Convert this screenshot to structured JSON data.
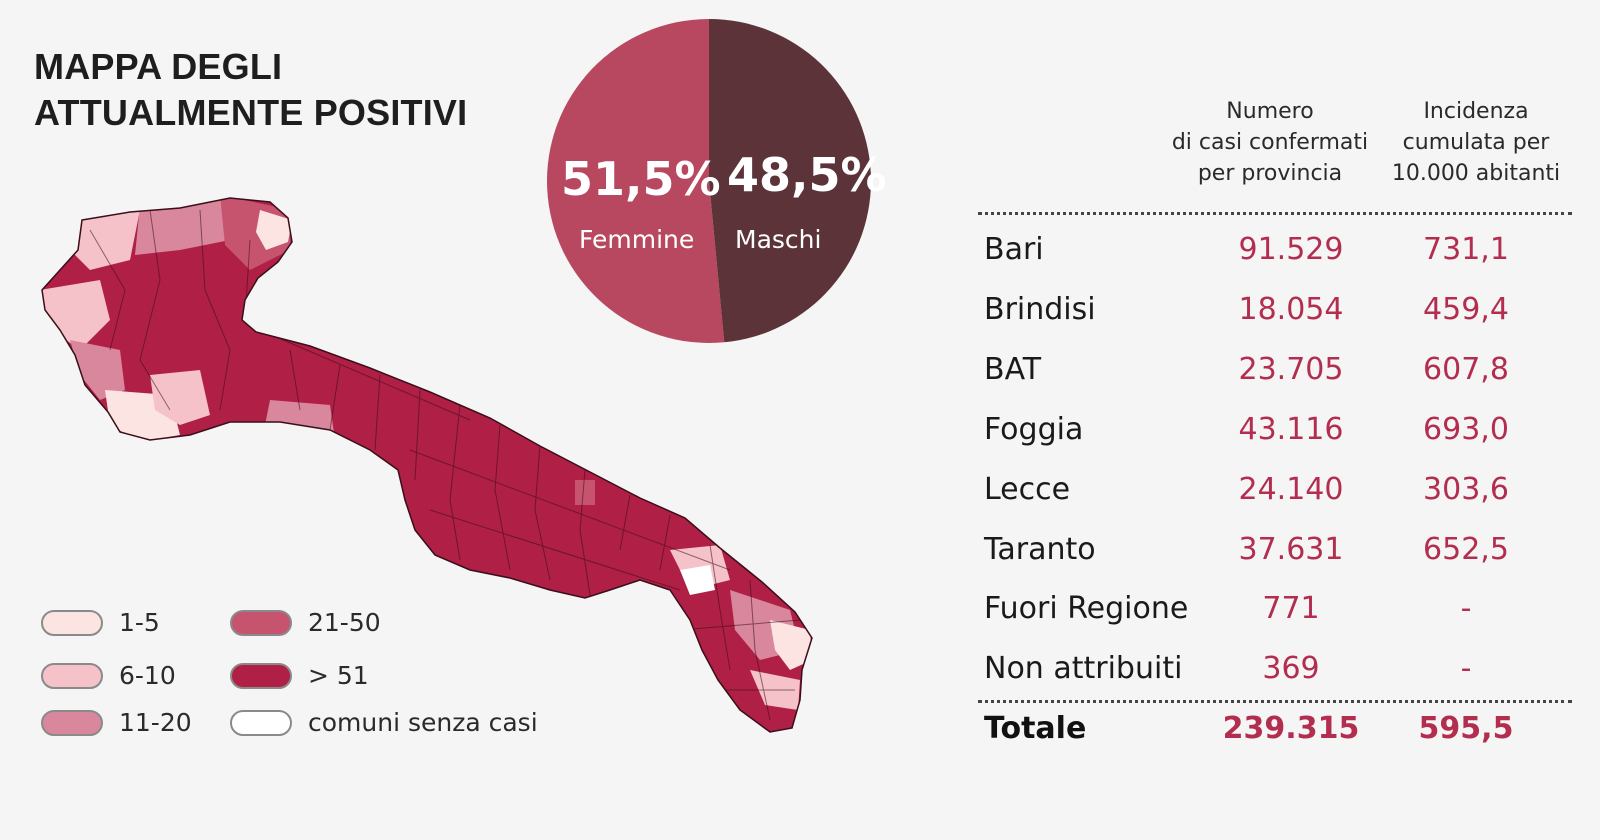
{
  "title": {
    "line1": "MAPPA DEGLI",
    "line2": "ATTUALMENTE POSITIVI"
  },
  "pie": {
    "femmine": {
      "pct": "51,5%",
      "label": "Femmine",
      "value": 51.5,
      "color": "#b84860"
    },
    "maschi": {
      "pct": "48,5%",
      "label": "Maschi",
      "value": 48.5,
      "color": "#5c3338"
    }
  },
  "legend": [
    {
      "label": "1-5",
      "color": "#fbe4e2"
    },
    {
      "label": "6-10",
      "color": "#f4c2c8"
    },
    {
      "label": "11-20",
      "color": "#d8879c"
    },
    {
      "label": "21-50",
      "color": "#c7546f"
    },
    {
      "label": "> 51",
      "color": "#b01f45"
    },
    {
      "label": "comuni senza casi",
      "color": "#ffffff"
    }
  ],
  "table": {
    "headers": {
      "col1": [
        "Numero",
        "di casi confermati",
        "per provincia"
      ],
      "col2": [
        "Incidenza",
        "cumulata per",
        "10.000 abitanti"
      ]
    },
    "rows": [
      {
        "name": "Bari",
        "cases": "91.529",
        "incidence": "731,1"
      },
      {
        "name": "Brindisi",
        "cases": "18.054",
        "incidence": "459,4"
      },
      {
        "name": "BAT",
        "cases": "23.705",
        "incidence": "607,8"
      },
      {
        "name": "Foggia",
        "cases": "43.116",
        "incidence": "693,0"
      },
      {
        "name": "Lecce",
        "cases": "24.140",
        "incidence": "303,6"
      },
      {
        "name": "Taranto",
        "cases": "37.631",
        "incidence": "652,5"
      },
      {
        "name": "Fuori Regione",
        "cases": "771",
        "incidence": "-"
      },
      {
        "name": "Non attribuiti",
        "cases": "369",
        "incidence": "-"
      }
    ],
    "total": {
      "name": "Totale",
      "cases": "239.315",
      "incidence": "595,5"
    }
  }
}
